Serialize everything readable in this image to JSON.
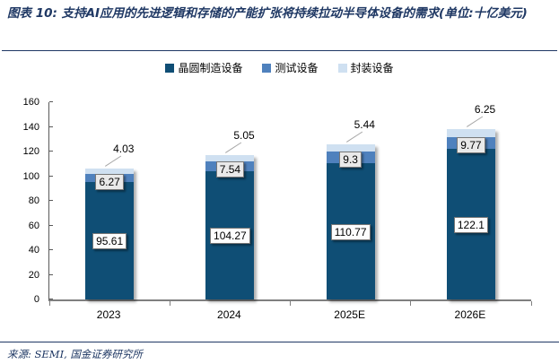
{
  "title": "图表 10: 支持AI应用的先进逻辑和存储的产能扩张将持续拉动半导体设备的需求(单位:十亿美元)",
  "source": "来源: SEMI, 国金证券研究所",
  "colors": {
    "title_navy": "#1f3864",
    "axis_gray": "#7f7f7f",
    "leader_gray": "#a6a6a6",
    "wafer_dark_blue": "#0f4e75",
    "test_mid_blue": "#4f81bd",
    "packaging_light_blue": "#cfe0f1"
  },
  "chart_data": {
    "type": "bar",
    "subtype": "stacked-column",
    "categories": [
      "2023",
      "2024",
      "2025E",
      "2026E"
    ],
    "series": [
      {
        "name": "晶圆制造设备",
        "color": "#0f4e75",
        "label_style": "white",
        "values": [
          95.61,
          104.27,
          110.77,
          122.1
        ]
      },
      {
        "name": "测试设备",
        "color": "#4f81bd",
        "label_style": "gray",
        "values": [
          6.27,
          7.54,
          9.3,
          9.77
        ]
      },
      {
        "name": "封装设备",
        "color": "#cfe0f1",
        "label_style": "outside",
        "values": [
          4.03,
          5.05,
          5.44,
          6.25
        ]
      }
    ],
    "totals": [
      105.91,
      116.86,
      125.51,
      138.12
    ],
    "xlabel": "",
    "ylabel": "",
    "ylim": [
      0,
      160
    ],
    "yticks": [
      0,
      20,
      40,
      60,
      80,
      100,
      120,
      140,
      160
    ],
    "grid": false,
    "legend_position": "top",
    "data_labels": true
  }
}
